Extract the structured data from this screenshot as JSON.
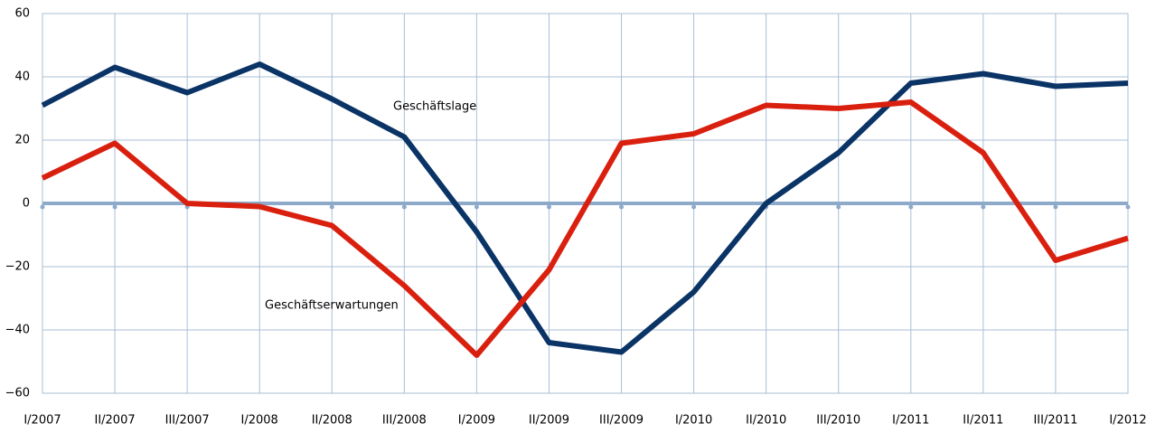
{
  "chart_data": {
    "type": "line",
    "categories": [
      "I/2007",
      "II/2007",
      "III/2007",
      "I/2008",
      "II/2008",
      "III/2008",
      "I/2009",
      "II/2009",
      "III/2009",
      "I/2010",
      "II/2010",
      "III/2010",
      "I/2011",
      "II/2011",
      "III/2011",
      "I/2012"
    ],
    "series": [
      {
        "name": "Geschäftslage",
        "color": "#0a3366",
        "values": [
          31,
          43,
          35,
          44,
          33,
          21,
          -9,
          -44,
          -47,
          -28,
          0,
          16,
          38,
          41,
          37,
          38
        ]
      },
      {
        "name": "Geschäftserwartungen",
        "color": "#d9200f",
        "values": [
          8,
          19,
          0,
          -1,
          -7,
          -26,
          -48,
          -21,
          19,
          22,
          31,
          30,
          32,
          16,
          -18,
          -11
        ]
      }
    ],
    "ylim": [
      -60,
      60
    ],
    "yticks": [
      {
        "value": -60,
        "label": "−60"
      },
      {
        "value": -40,
        "label": "−40"
      },
      {
        "value": -20,
        "label": "−20"
      },
      0,
      20,
      40,
      60
    ],
    "grid": true
  }
}
